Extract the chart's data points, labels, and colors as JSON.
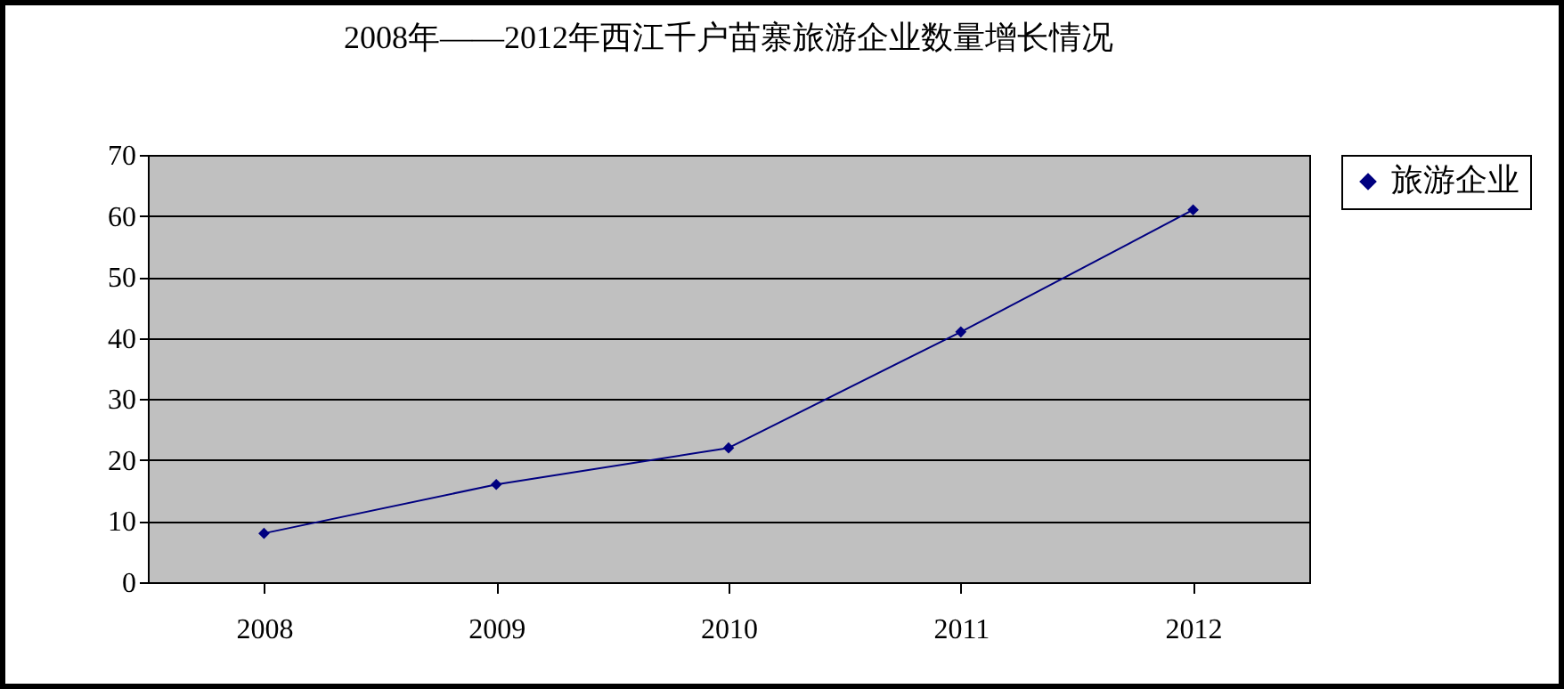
{
  "chart_data": {
    "type": "line",
    "title": "2008年——2012年西江千户苗寨旅游企业数量增长情况",
    "categories": [
      "2008",
      "2009",
      "2010",
      "2011",
      "2012"
    ],
    "series": [
      {
        "name": "旅游企业",
        "color": "#000080",
        "values": [
          8,
          16,
          22,
          41,
          61
        ]
      }
    ],
    "ylim": [
      0,
      70
    ],
    "yticks": [
      0,
      10,
      20,
      30,
      40,
      50,
      60,
      70
    ],
    "grid": "y",
    "legend": "right",
    "marker": "diamond",
    "line_style": "solid"
  }
}
